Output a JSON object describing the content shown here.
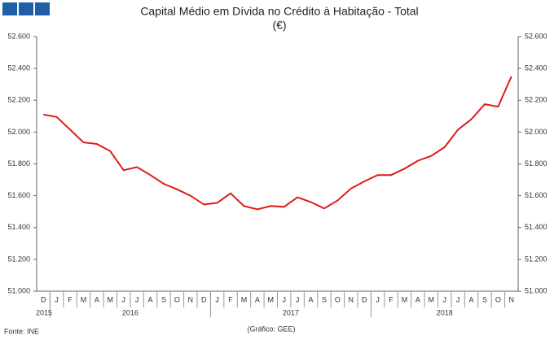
{
  "chart_data": {
    "type": "line",
    "title": "Capital Médio em Dívida no Crédito à Habitação - Total",
    "subtitle": "(€)",
    "source": "Fonte: INE",
    "credit": "(Gráfico: GEE)",
    "categories": [
      "D",
      "J",
      "F",
      "M",
      "A",
      "M",
      "J",
      "J",
      "A",
      "S",
      "O",
      "N",
      "D",
      "J",
      "F",
      "M",
      "A",
      "M",
      "J",
      "J",
      "A",
      "S",
      "O",
      "N",
      "D",
      "J",
      "F",
      "M",
      "A",
      "M",
      "J",
      "J",
      "A",
      "S",
      "O",
      "N"
    ],
    "years": [
      "2015",
      "2016",
      "2017",
      "2018"
    ],
    "series": [
      {
        "name": "Capital Médio em Dívida",
        "color": "#e0191b",
        "values": [
          52110,
          52095,
          52015,
          51935,
          51925,
          51880,
          51760,
          51780,
          51730,
          51675,
          51640,
          51600,
          51545,
          51555,
          51615,
          51535,
          51515,
          51535,
          51530,
          51590,
          51560,
          51520,
          51570,
          51645,
          51690,
          51730,
          51730,
          51770,
          51820,
          51850,
          51905,
          52015,
          52080,
          52175,
          52160,
          52350
        ]
      }
    ],
    "ylim": [
      51000,
      52600
    ],
    "yticks": [
      {
        "value": 51000,
        "label": "51.000"
      },
      {
        "value": 51200,
        "label": "51.200"
      },
      {
        "value": 51400,
        "label": "51.400"
      },
      {
        "value": 51600,
        "label": "51.600"
      },
      {
        "value": 51800,
        "label": "51.800"
      },
      {
        "value": 52000,
        "label": "52.000"
      },
      {
        "value": 52200,
        "label": "52.200"
      },
      {
        "value": 52400,
        "label": "52.400"
      },
      {
        "value": 52600,
        "label": "52.600"
      }
    ],
    "grid": false
  }
}
